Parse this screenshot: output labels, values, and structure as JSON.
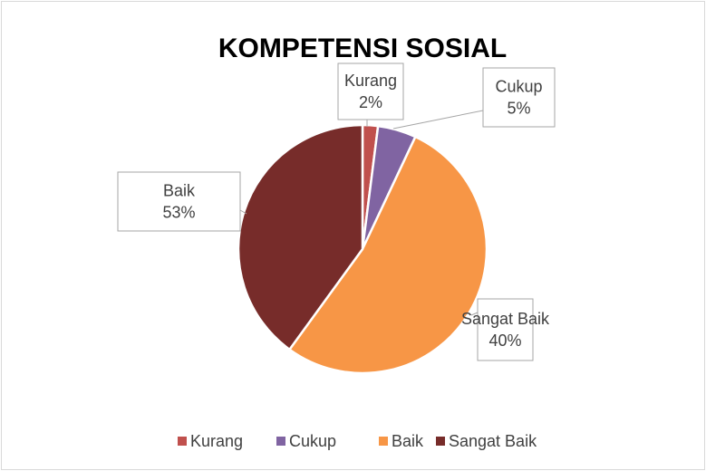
{
  "chart_data": {
    "type": "pie",
    "title": "KOMPETENSI SOSIAL",
    "categories": [
      "Kurang",
      "Cukup",
      "Baik",
      "Sangat Baik"
    ],
    "values": [
      2,
      5,
      53,
      40
    ],
    "value_labels": [
      "2%",
      "5%",
      "53%",
      "40%"
    ],
    "colors": [
      "#c0504d",
      "#8064a2",
      "#f79646",
      "#772c2a"
    ],
    "legend": "bottom"
  }
}
